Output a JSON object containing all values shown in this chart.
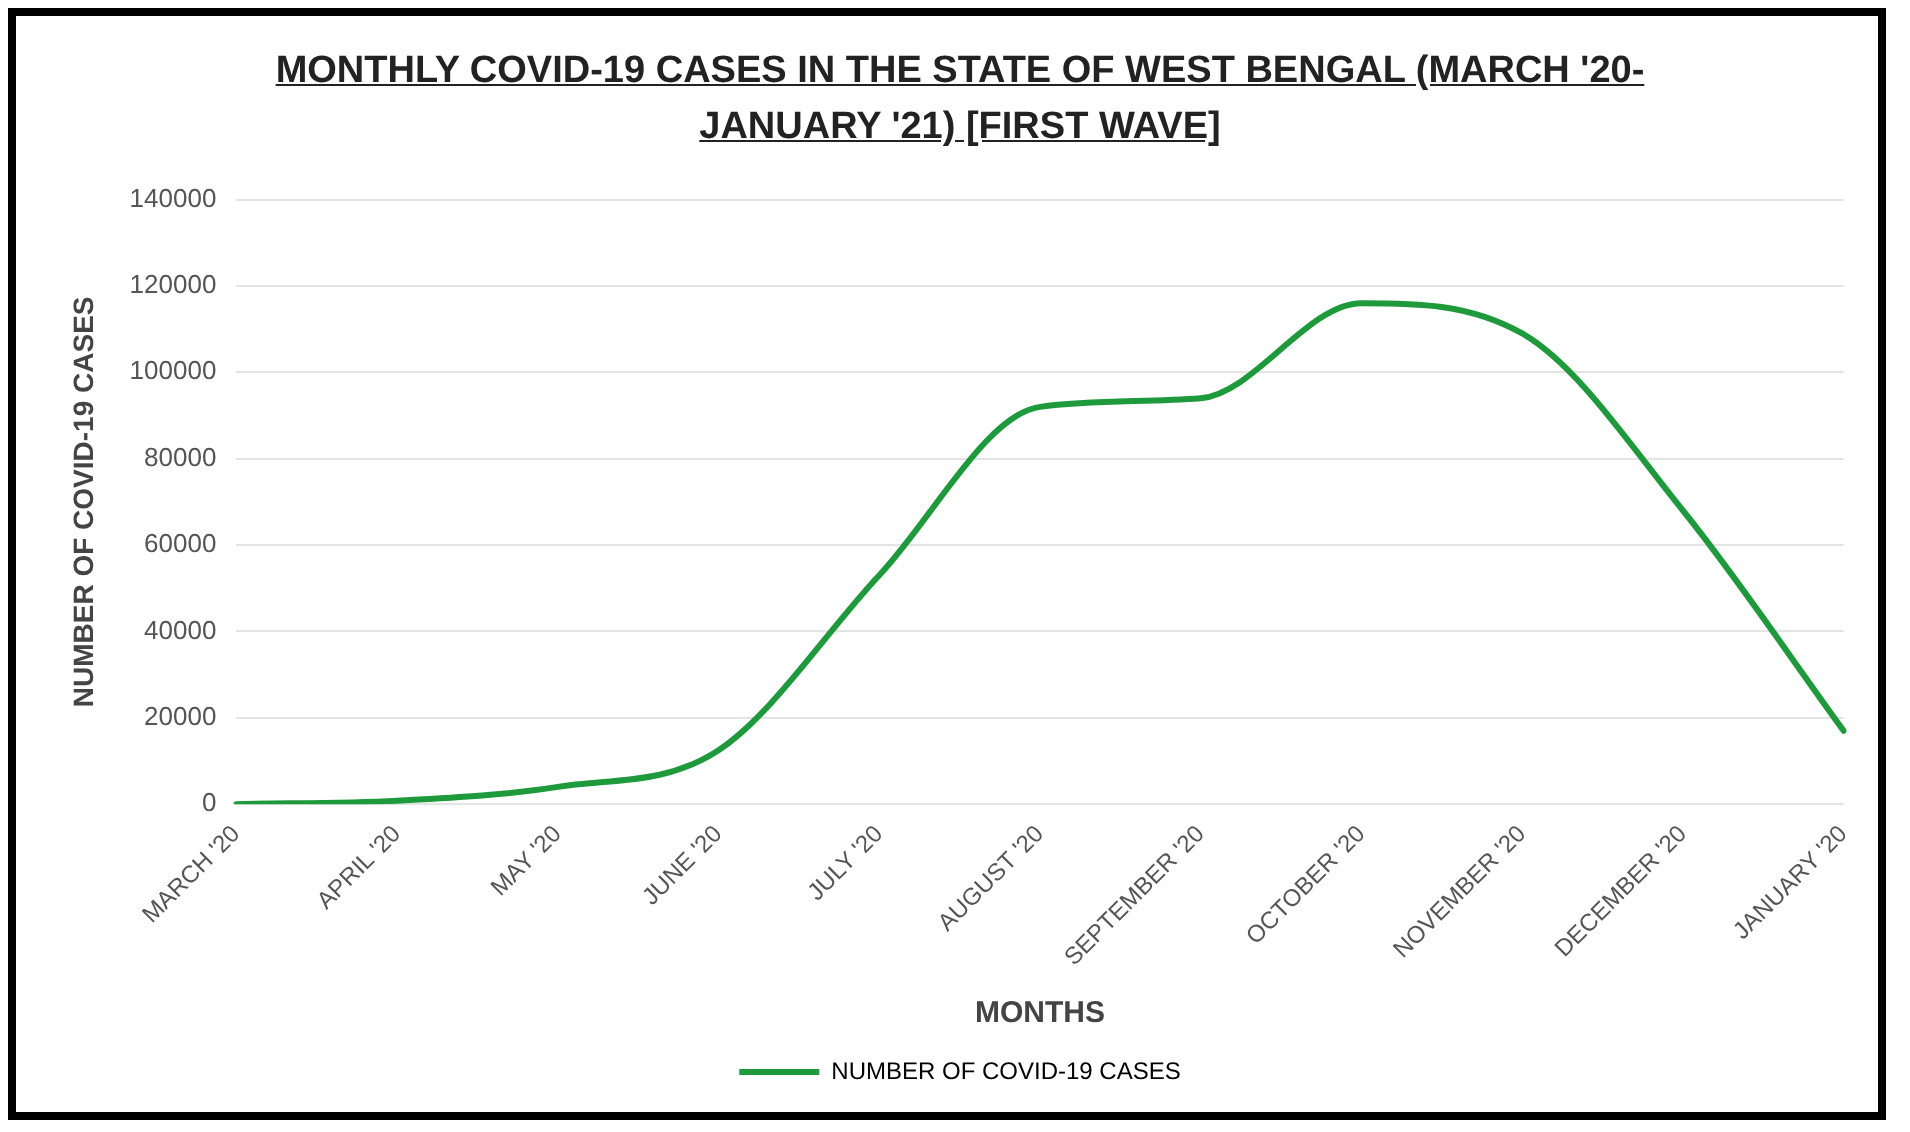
{
  "chart_data": {
    "type": "line",
    "title": "MONTHLY COVID-19 CASES IN THE STATE OF WEST BENGAL (MARCH '20-JANUARY '21) [FIRST WAVE]",
    "xlabel": "MONTHS",
    "ylabel": "NUMBER OF COVID-19 CASES",
    "categories": [
      "MARCH '20",
      "APRIL '20",
      "MAY '20",
      "JUNE '20",
      "JULY '20",
      "AUGUST '20",
      "SEPTEMBER '20",
      "OCTOBER '20",
      "NOVEMBER '20",
      "DECEMBER '20",
      "JANUARY '20"
    ],
    "series": [
      {
        "name": "NUMBER OF COVID-19 CASES",
        "color": "#1e9a3c",
        "values": [
          0,
          800,
          4000,
          12500,
          53000,
          92000,
          94000,
          116000,
          109000,
          68000,
          17000
        ]
      }
    ],
    "ylim": [
      0,
      140000
    ],
    "yticks": [
      0,
      20000,
      40000,
      60000,
      80000,
      100000,
      120000,
      140000
    ],
    "grid": "y",
    "legend": "bottom",
    "marker": "none",
    "line_style": "solid"
  }
}
